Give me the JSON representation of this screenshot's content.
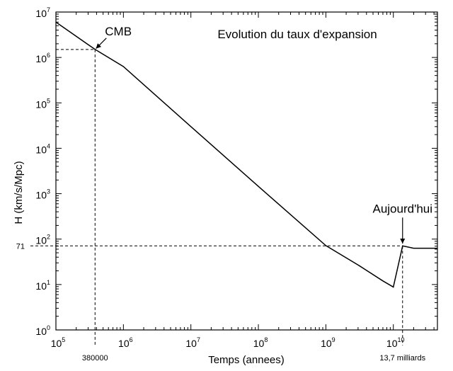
{
  "chart_data": {
    "type": "line",
    "title": "Evolution du taux d'expansion",
    "xlabel": "Temps (annees)",
    "ylabel": "H (km/s/Mpc)",
    "x_scale": "log",
    "y_scale": "log",
    "xlim": [
      100000,
      45000000000
    ],
    "ylim": [
      1,
      10000000
    ],
    "x_ticks": [
      {
        "base": "10",
        "exp": "5",
        "value": 100000
      },
      {
        "base": "10",
        "exp": "6",
        "value": 1000000
      },
      {
        "base": "10",
        "exp": "7",
        "value": 10000000
      },
      {
        "base": "10",
        "exp": "8",
        "value": 100000000
      },
      {
        "base": "10",
        "exp": "9",
        "value": 1000000000
      },
      {
        "base": "10",
        "exp": "10",
        "value": 10000000000
      }
    ],
    "y_ticks": [
      {
        "base": "10",
        "exp": "0",
        "value": 1
      },
      {
        "base": "10",
        "exp": "1",
        "value": 10
      },
      {
        "base": "10",
        "exp": "2",
        "value": 100
      },
      {
        "base": "10",
        "exp": "3",
        "value": 1000
      },
      {
        "base": "10",
        "exp": "4",
        "value": 10000
      },
      {
        "base": "10",
        "exp": "5",
        "value": 100000
      },
      {
        "base": "10",
        "exp": "6",
        "value": 1000000
      },
      {
        "base": "10",
        "exp": "7",
        "value": 10000000
      }
    ],
    "series": [
      {
        "x": [
          100000,
          380000,
          1000000,
          10000000,
          100000000,
          1000000000,
          3000000000,
          7000000000,
          10000000000,
          13700000000,
          20000000000,
          45000000000
        ],
        "y": [
          6000000,
          1500000,
          630000,
          30000,
          1450,
          72,
          27,
          12,
          8.8,
          71,
          63,
          63
        ]
      }
    ],
    "reference_lines": [
      {
        "axis": "x",
        "value": 380000,
        "label": "380000",
        "to_y": 1500000
      },
      {
        "axis": "x",
        "value": 13700000000,
        "label": "13,7 milliards",
        "to_y": 71
      },
      {
        "axis": "y",
        "value": 1500000,
        "label": "",
        "to_x": 380000
      },
      {
        "axis": "y",
        "value": 71,
        "label": "71",
        "to_x": 13700000000
      }
    ],
    "annotations": [
      {
        "text": "CMB",
        "x": 380000,
        "y": 1500000
      },
      {
        "text": "Aujourd'hui",
        "x": 13700000000,
        "y": 71
      }
    ],
    "grid": false,
    "legend": "none"
  }
}
